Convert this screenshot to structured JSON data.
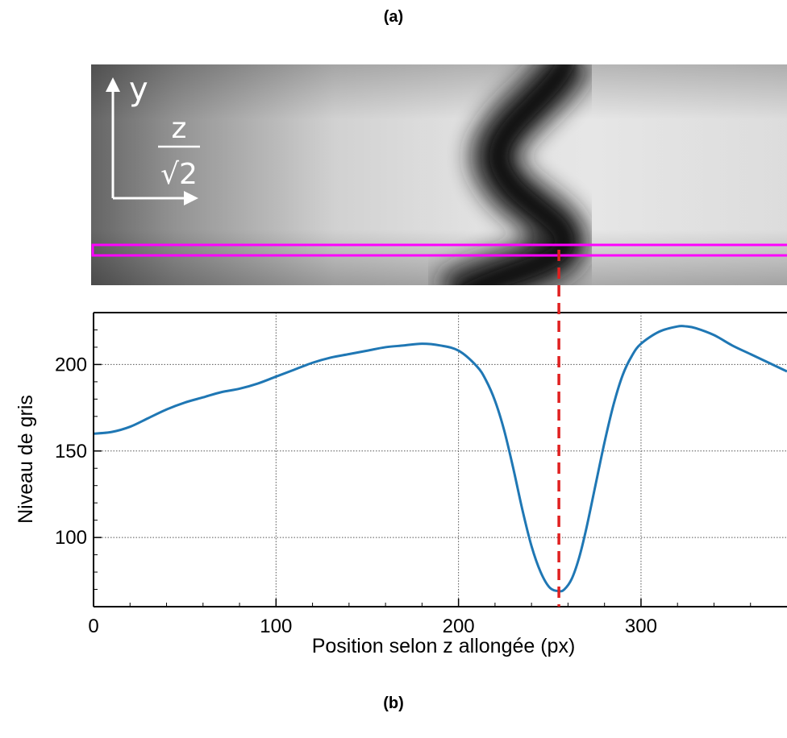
{
  "panels": {
    "a": "(a)",
    "b": "(b)"
  },
  "image_panel": {
    "axis_y_label": "y",
    "axis_z_numerator": "z",
    "axis_z_denominator": "√2",
    "highlight_color": "#ff00ff",
    "marker_color": "#e02020"
  },
  "chart_data": {
    "type": "line",
    "title": "",
    "xlabel": "Position selon z allongée (px)",
    "ylabel": "Niveau de gris",
    "xlim": [
      0,
      380
    ],
    "ylim": [
      60,
      230
    ],
    "xticks": [
      0,
      100,
      200,
      300
    ],
    "yticks": [
      100,
      150,
      200
    ],
    "grid": true,
    "line_color": "#1f77b4",
    "vline": {
      "x": 255,
      "style": "dashed",
      "color": "#e02020"
    },
    "series": [
      {
        "x": [
          0,
          10,
          20,
          30,
          40,
          50,
          60,
          70,
          80,
          90,
          100,
          110,
          120,
          130,
          140,
          150,
          160,
          170,
          180,
          190,
          200,
          210,
          215,
          220,
          225,
          230,
          235,
          240,
          245,
          250,
          255,
          258,
          262,
          266,
          270,
          275,
          280,
          285,
          290,
          295,
          300,
          310,
          320,
          325,
          330,
          340,
          350,
          360,
          370,
          380
        ],
        "values": [
          160,
          161,
          164,
          169,
          174,
          178,
          181,
          184,
          186,
          189,
          193,
          197,
          201,
          204,
          206,
          208,
          210,
          211,
          212,
          211,
          208,
          199,
          191,
          179,
          162,
          140,
          116,
          95,
          80,
          71,
          69,
          70,
          76,
          88,
          105,
          130,
          155,
          177,
          194,
          205,
          212,
          219,
          222,
          222,
          221,
          217,
          211,
          206,
          201,
          196
        ]
      }
    ]
  }
}
